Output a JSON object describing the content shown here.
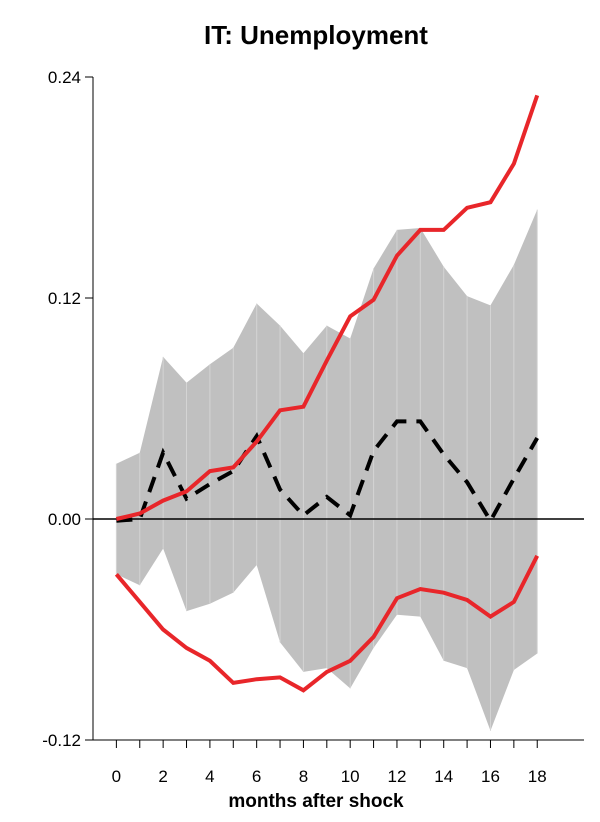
{
  "chart_data": {
    "type": "line",
    "title": "IT: Unemployment",
    "xlabel": "months after shock",
    "ylabel": "",
    "xlim": [
      -1,
      20
    ],
    "ylim": [
      -0.12,
      0.24
    ],
    "x": [
      0,
      1,
      2,
      3,
      4,
      5,
      6,
      7,
      8,
      9,
      10,
      11,
      12,
      13,
      14,
      15,
      16,
      17,
      18
    ],
    "x_ticks": [
      {
        "value": 0,
        "label": "0"
      },
      {
        "value": 2,
        "label": "2"
      },
      {
        "value": 4,
        "label": "4"
      },
      {
        "value": 6,
        "label": "6"
      },
      {
        "value": 8,
        "label": "8"
      },
      {
        "value": 10,
        "label": "10"
      },
      {
        "value": 12,
        "label": "12"
      },
      {
        "value": 14,
        "label": "14"
      },
      {
        "value": 16,
        "label": "16"
      },
      {
        "value": 18,
        "label": "18"
      }
    ],
    "y_ticks": [
      {
        "value": -0.12,
        "label": "-0.12"
      },
      {
        "value": 0.0,
        "label": "0.00"
      },
      {
        "value": 0.12,
        "label": "0.12"
      },
      {
        "value": 0.24,
        "label": "0.24"
      }
    ],
    "zero_line": true,
    "grid": false,
    "band": {
      "color": "#c0c0c0",
      "lower": [
        -0.03,
        -0.036,
        -0.016,
        -0.05,
        -0.046,
        -0.04,
        -0.025,
        -0.067,
        -0.083,
        -0.081,
        -0.092,
        -0.07,
        -0.052,
        -0.053,
        -0.077,
        -0.081,
        -0.115,
        -0.082,
        -0.073
      ],
      "upper": [
        0.03,
        0.036,
        0.088,
        0.074,
        0.084,
        0.093,
        0.117,
        0.105,
        0.09,
        0.105,
        0.098,
        0.136,
        0.157,
        0.158,
        0.137,
        0.121,
        0.116,
        0.138,
        0.168
      ]
    },
    "series": [
      {
        "style": "dashed",
        "color": "#000000",
        "values": [
          -0.001,
          0.0,
          0.036,
          0.011,
          0.019,
          0.026,
          0.045,
          0.016,
          0.002,
          0.012,
          0.002,
          0.037,
          0.053,
          0.053,
          0.035,
          0.02,
          -0.001,
          0.022,
          0.044
        ]
      },
      {
        "style": "solid",
        "color": "#e8262a",
        "values": [
          0.0,
          0.003,
          0.01,
          0.015,
          0.026,
          0.028,
          0.042,
          0.059,
          0.061,
          0.086,
          0.11,
          0.119,
          0.143,
          0.157,
          0.157,
          0.169,
          0.172,
          0.193,
          0.23
        ]
      },
      {
        "style": "solid",
        "color": "#e8262a",
        "values": [
          -0.03,
          -0.045,
          -0.06,
          -0.07,
          -0.077,
          -0.089,
          -0.087,
          -0.086,
          -0.093,
          -0.083,
          -0.077,
          -0.064,
          -0.043,
          -0.038,
          -0.04,
          -0.044,
          -0.053,
          -0.045,
          -0.02
        ]
      }
    ]
  }
}
